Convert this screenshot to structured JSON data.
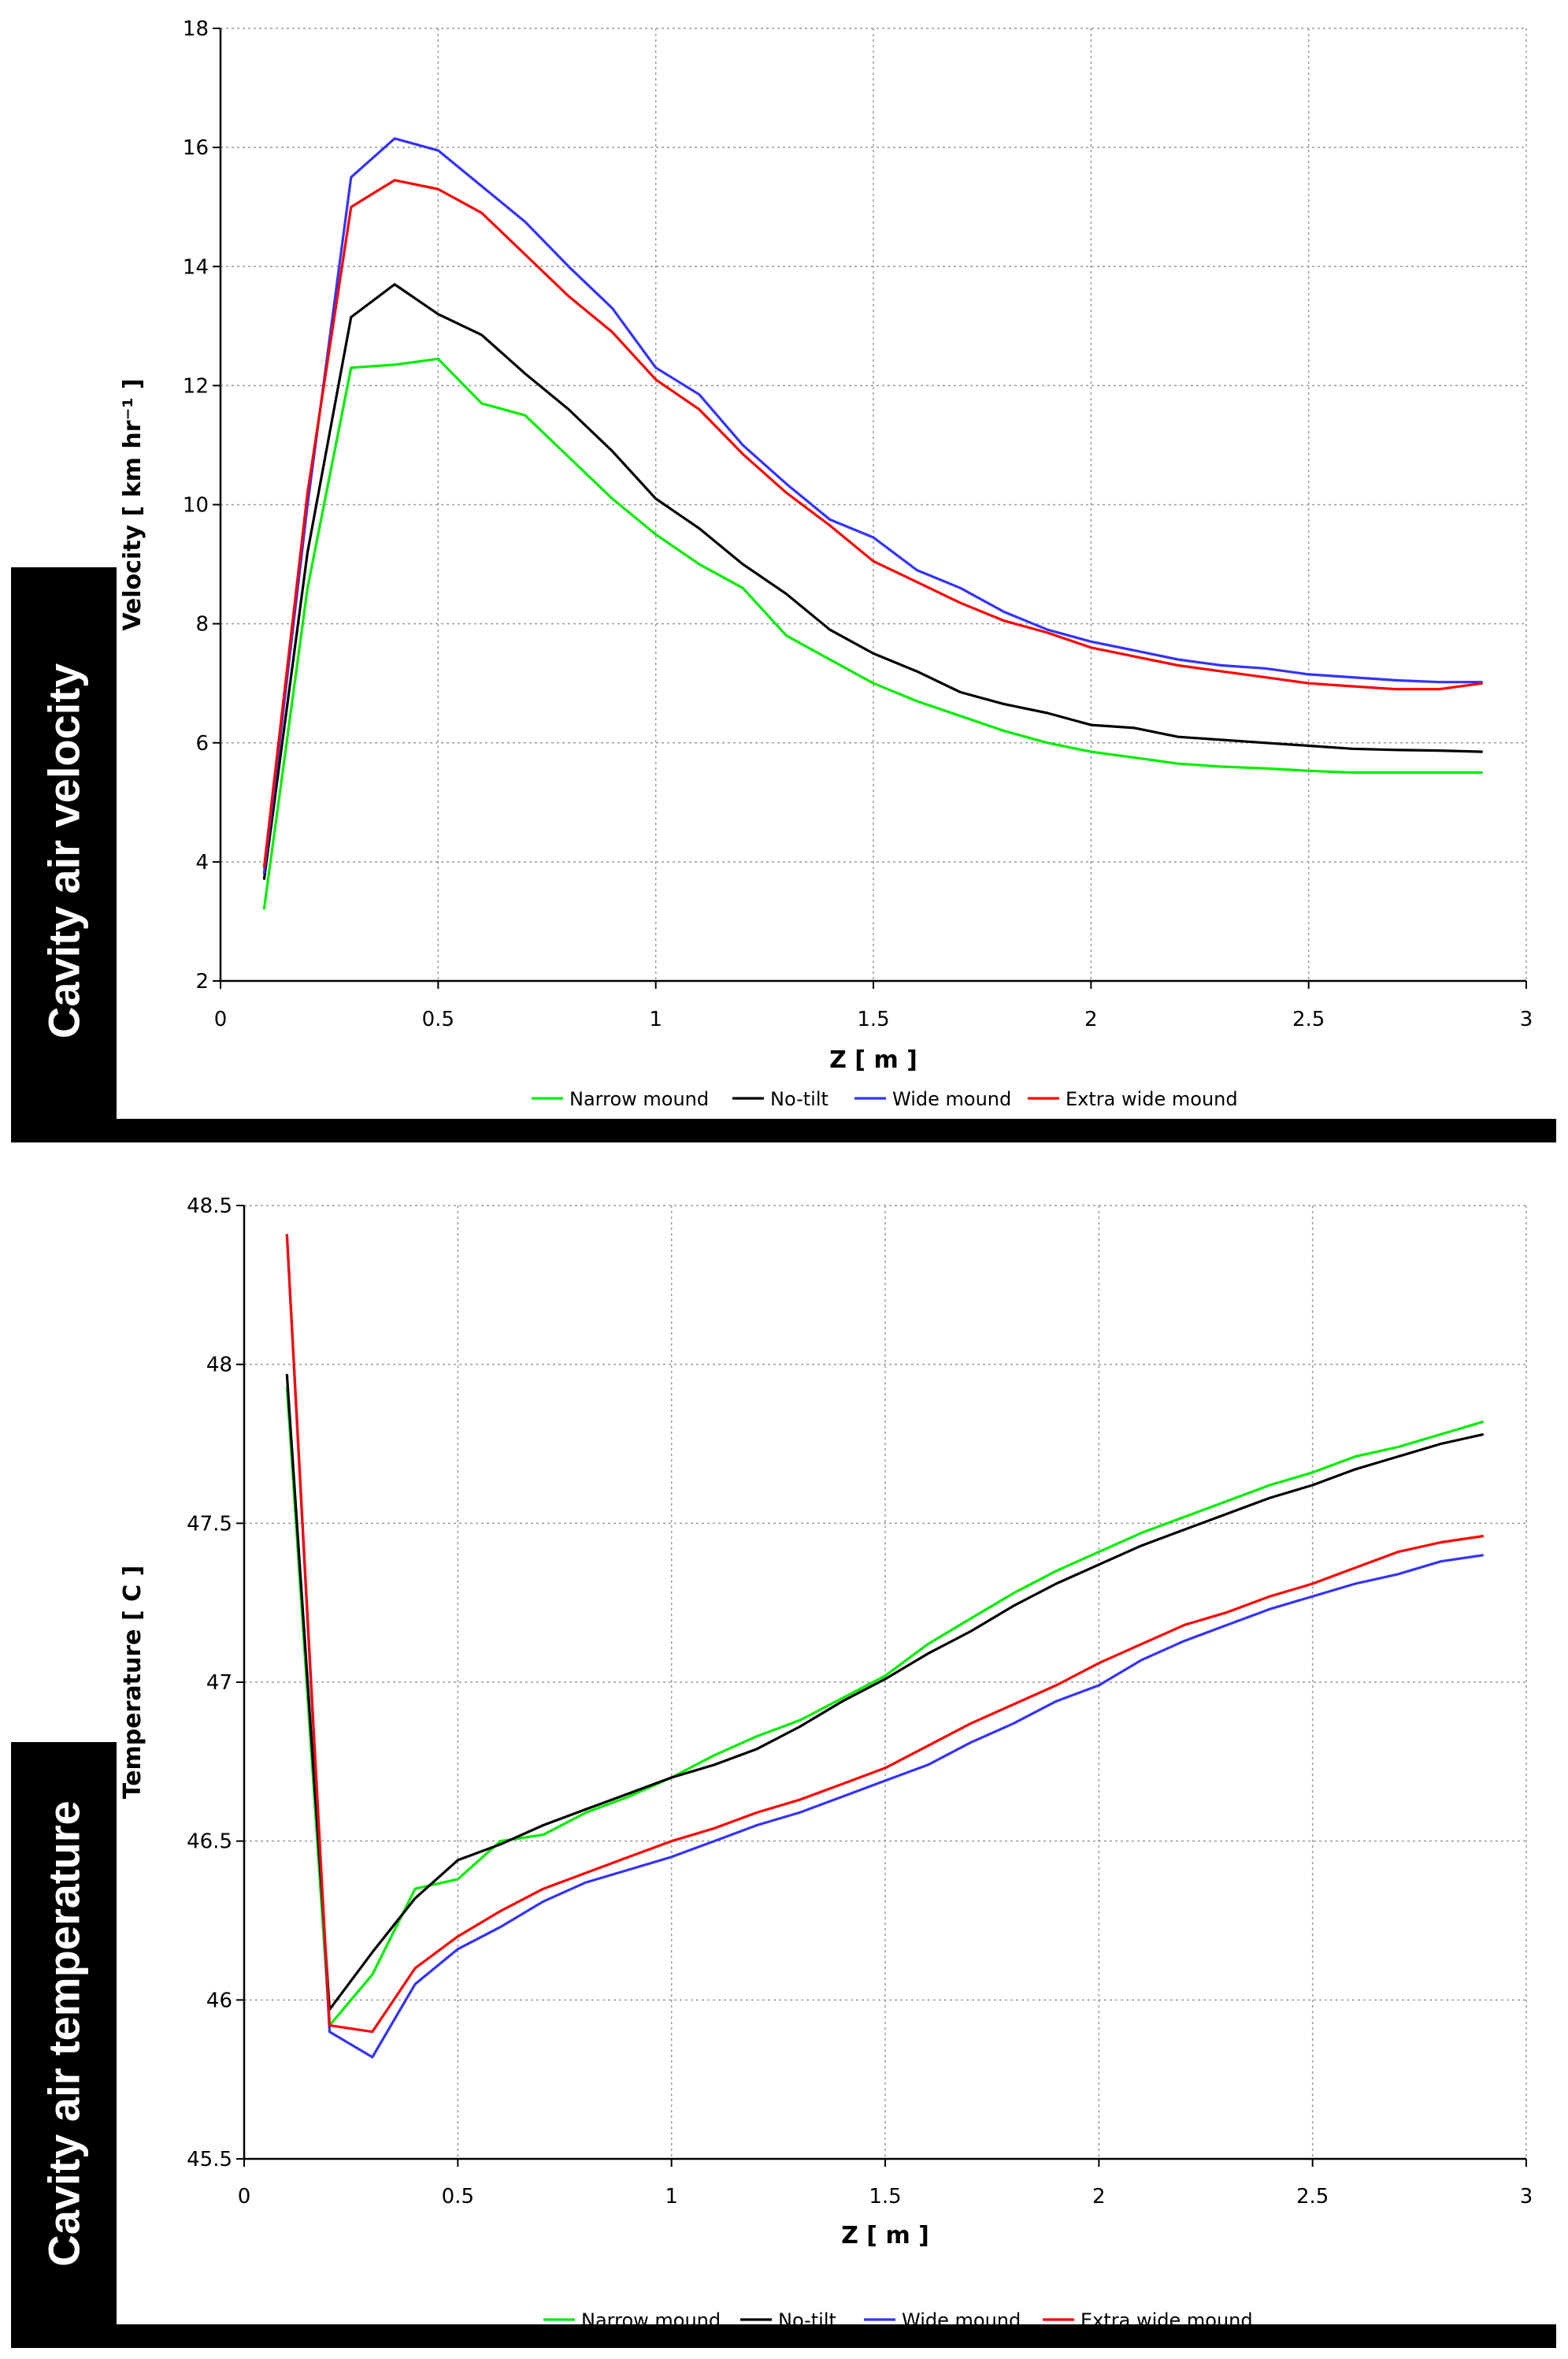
{
  "panels": [
    {
      "side_label": "Cavity air velocity"
    },
    {
      "side_label": "Cavity air temperature"
    }
  ],
  "colors": {
    "narrow": "#00ee00",
    "notilt": "#000000",
    "wide": "#3333ff",
    "extrawide": "#ff0000",
    "grid": "#9a9a9a"
  },
  "chart_data": [
    {
      "type": "line",
      "title": "",
      "xlabel": "Z [ m ]",
      "ylabel": "Velocity [ km hr⁻¹ ]",
      "xlim": [
        0,
        3
      ],
      "ylim": [
        2,
        18
      ],
      "xticks": [
        0,
        0.5,
        1,
        1.5,
        2,
        2.5,
        3
      ],
      "xtick_labels": [
        "0",
        "0.5",
        "1",
        "1.5",
        "2",
        "2.5",
        "3"
      ],
      "yticks": [
        2,
        4,
        6,
        8,
        10,
        12,
        14,
        16,
        18
      ],
      "ytick_labels": [
        "2",
        "4",
        "6",
        "8",
        "10",
        "12",
        "14",
        "16",
        "18"
      ],
      "grid": true,
      "legend_position": "bottom",
      "x": [
        0.1,
        0.2,
        0.3,
        0.4,
        0.5,
        0.6,
        0.7,
        0.8,
        0.9,
        1.0,
        1.1,
        1.2,
        1.3,
        1.4,
        1.5,
        1.6,
        1.7,
        1.8,
        1.9,
        2.0,
        2.1,
        2.2,
        2.3,
        2.4,
        2.5,
        2.6,
        2.7,
        2.8,
        2.9
      ],
      "series": [
        {
          "name": "Narrow mound",
          "color_key": "narrow",
          "values": [
            3.2,
            8.6,
            12.3,
            12.35,
            12.45,
            11.7,
            11.5,
            10.8,
            10.1,
            9.5,
            9.0,
            8.6,
            7.8,
            7.4,
            7.0,
            6.7,
            6.45,
            6.2,
            6.0,
            5.85,
            5.75,
            5.65,
            5.6,
            5.57,
            5.53,
            5.5,
            5.5,
            5.5,
            5.5
          ]
        },
        {
          "name": "No-tilt",
          "color_key": "notilt",
          "values": [
            3.7,
            9.2,
            13.15,
            13.7,
            13.2,
            12.85,
            12.2,
            11.6,
            10.9,
            10.1,
            9.6,
            9.0,
            8.5,
            7.9,
            7.5,
            7.2,
            6.85,
            6.65,
            6.5,
            6.3,
            6.25,
            6.1,
            6.05,
            6.0,
            5.95,
            5.9,
            5.88,
            5.87,
            5.85
          ]
        },
        {
          "name": "Wide mound",
          "color_key": "wide",
          "values": [
            3.8,
            10.0,
            15.5,
            16.15,
            15.95,
            15.35,
            14.75,
            14.0,
            13.3,
            12.3,
            11.85,
            11.0,
            10.35,
            9.75,
            9.45,
            8.9,
            8.6,
            8.2,
            7.9,
            7.7,
            7.55,
            7.4,
            7.3,
            7.25,
            7.15,
            7.1,
            7.05,
            7.02,
            7.02
          ]
        },
        {
          "name": "Extra wide mound",
          "color_key": "extrawide",
          "values": [
            3.9,
            10.2,
            15.0,
            15.45,
            15.3,
            14.9,
            14.2,
            13.5,
            12.9,
            12.1,
            11.6,
            10.85,
            10.2,
            9.65,
            9.05,
            8.7,
            8.35,
            8.05,
            7.85,
            7.6,
            7.45,
            7.3,
            7.2,
            7.1,
            7.0,
            6.95,
            6.9,
            6.9,
            7.0
          ]
        }
      ]
    },
    {
      "type": "line",
      "title": "",
      "xlabel": "Z [ m ]",
      "ylabel": "Temperature [ C ]",
      "xlim": [
        0,
        3
      ],
      "ylim": [
        45.5,
        48.5
      ],
      "xticks": [
        0,
        0.5,
        1,
        1.5,
        2,
        2.5,
        3
      ],
      "xtick_labels": [
        "0",
        "0.5",
        "1",
        "1.5",
        "2",
        "2.5",
        "3"
      ],
      "yticks": [
        45.5,
        46,
        46.5,
        47,
        47.5,
        48,
        48.5
      ],
      "ytick_labels": [
        "45.5",
        "46",
        "46.5",
        "47",
        "47.5",
        "48",
        "48.5"
      ],
      "grid": true,
      "legend_position": "bottom",
      "x": [
        0.1,
        0.2,
        0.3,
        0.4,
        0.5,
        0.6,
        0.7,
        0.8,
        0.9,
        1.0,
        1.1,
        1.2,
        1.3,
        1.4,
        1.5,
        1.6,
        1.7,
        1.8,
        1.9,
        2.0,
        2.1,
        2.2,
        2.3,
        2.4,
        2.5,
        2.6,
        2.7,
        2.8,
        2.9
      ],
      "series": [
        {
          "name": "Narrow mound",
          "color_key": "narrow",
          "values": [
            47.93,
            45.92,
            46.08,
            46.35,
            46.38,
            46.5,
            46.52,
            46.59,
            46.64,
            46.7,
            46.77,
            46.83,
            46.88,
            46.95,
            47.02,
            47.12,
            47.2,
            47.28,
            47.35,
            47.41,
            47.47,
            47.52,
            47.57,
            47.62,
            47.66,
            47.71,
            47.74,
            47.78,
            47.82
          ]
        },
        {
          "name": "No-tilt",
          "color_key": "notilt",
          "values": [
            47.97,
            45.97,
            46.15,
            46.32,
            46.44,
            46.49,
            46.55,
            46.6,
            46.65,
            46.7,
            46.74,
            46.79,
            46.86,
            46.94,
            47.01,
            47.09,
            47.16,
            47.24,
            47.31,
            47.37,
            47.43,
            47.48,
            47.53,
            47.58,
            47.62,
            47.67,
            47.71,
            47.75,
            47.78
          ]
        },
        {
          "name": "Wide mound",
          "color_key": "wide",
          "values": [
            48.41,
            45.9,
            45.82,
            46.05,
            46.16,
            46.23,
            46.31,
            46.37,
            46.41,
            46.45,
            46.5,
            46.55,
            46.59,
            46.64,
            46.69,
            46.74,
            46.81,
            46.87,
            46.94,
            46.99,
            47.07,
            47.13,
            47.18,
            47.23,
            47.27,
            47.31,
            47.34,
            47.38,
            47.4
          ]
        },
        {
          "name": "Extra wide mound",
          "color_key": "extrawide",
          "values": [
            48.41,
            45.92,
            45.9,
            46.1,
            46.2,
            46.28,
            46.35,
            46.4,
            46.45,
            46.5,
            46.54,
            46.59,
            46.63,
            46.68,
            46.73,
            46.8,
            46.87,
            46.93,
            46.99,
            47.06,
            47.12,
            47.18,
            47.22,
            47.27,
            47.31,
            47.36,
            47.41,
            47.44,
            47.46
          ]
        }
      ]
    }
  ]
}
